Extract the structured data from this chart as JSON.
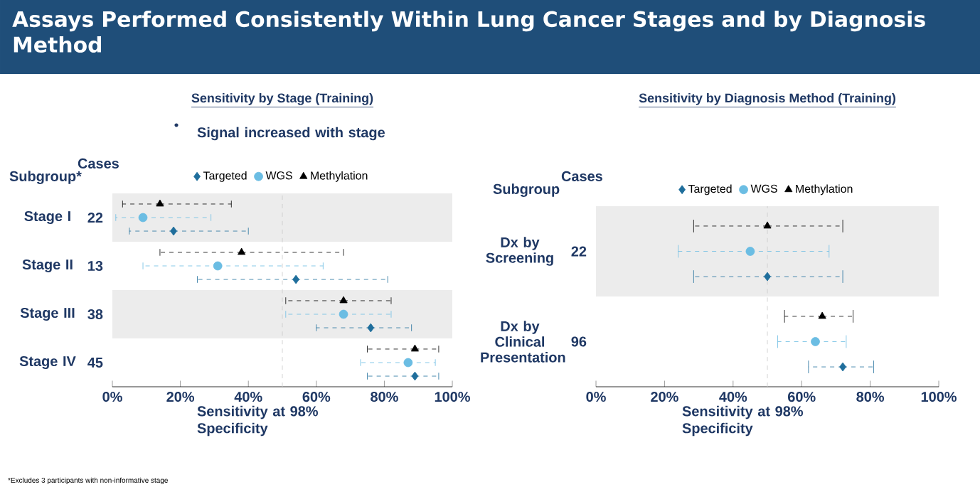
{
  "chart_data": [
    {
      "type": "scatter",
      "orientation": "horizontal",
      "title": "Assays Performed Consistently Within Lung Cancer Stages and by Diagnosis Method",
      "subtitle": "Sensitivity by Stage (Training)",
      "xlabel": "Sensitivity at 98% Specificity",
      "legend": "top",
      "categories": [
        "Stage I",
        "Stage II",
        "Stage III",
        "Stage IV"
      ],
      "xlim": [
        0,
        100
      ],
      "xticks": [
        {
          "value": 0,
          "label": "0%"
        },
        {
          "value": 20,
          "label": "20%"
        },
        {
          "value": 40,
          "label": "40%"
        },
        {
          "value": 60,
          "label": "60%"
        },
        {
          "value": 80,
          "label": "80%"
        },
        {
          "value": 100,
          "label": "100%"
        }
      ],
      "series": [
        {
          "name": "Targeted",
          "color": "#1f6e9c",
          "marker": "diamond",
          "values": [
            18,
            54,
            76,
            89
          ],
          "errors": [
            [
              5,
              40
            ],
            [
              25,
              81
            ],
            [
              60,
              88
            ],
            [
              75,
              96
            ]
          ]
        },
        {
          "name": "WGS",
          "color": "#6bbde3",
          "marker": "circle",
          "values": [
            9,
            31,
            68,
            87
          ],
          "errors": [
            [
              1,
              29
            ],
            [
              9,
              62
            ],
            [
              51,
              82
            ],
            [
              73,
              95
            ]
          ]
        },
        {
          "name": "Methylation",
          "color": "#000000",
          "marker": "triangle",
          "values": [
            14,
            38,
            68,
            89
          ],
          "errors": [
            [
              3,
              35
            ],
            [
              14,
              68
            ],
            [
              51,
              82
            ],
            [
              75,
              96
            ]
          ]
        }
      ],
      "ref_lines": [
        {
          "axis": "x",
          "value": 50,
          "color": "#c8c8c8",
          "line_style": "dashed"
        }
      ],
      "bands": [
        {
          "axis": "y",
          "from": "Stage I",
          "to": "Stage I",
          "color": "#ececec"
        },
        {
          "axis": "y",
          "from": "Stage III",
          "to": "Stage III",
          "color": "#ececec"
        }
      ],
      "annotations": [
        "Subgroup*",
        "Cases",
        "22",
        "13",
        "38",
        "45",
        "Signal increased with stage",
        "*Excludes 3 participants with non-informative stage"
      ]
    },
    {
      "type": "scatter",
      "orientation": "horizontal",
      "title": "Sensitivity by Diagnosis  Method (Training)",
      "xlabel": "Sensitivity at 98% Specificity",
      "legend": "top",
      "categories": [
        "Dx by Screening",
        "Dx by Clinical Presentation"
      ],
      "xlim": [
        0,
        100
      ],
      "xticks": [
        {
          "value": 0,
          "label": "0%"
        },
        {
          "value": 20,
          "label": "20%"
        },
        {
          "value": 40,
          "label": "40%"
        },
        {
          "value": 60,
          "label": "60%"
        },
        {
          "value": 80,
          "label": "80%"
        },
        {
          "value": 100,
          "label": "100%"
        }
      ],
      "series": [
        {
          "name": "Targeted",
          "color": "#1f6e9c",
          "marker": "diamond",
          "values": [
            50,
            72
          ],
          "errors": [
            [
              28.5,
              72
            ],
            [
              62,
              81
            ]
          ]
        },
        {
          "name": "WGS",
          "color": "#6bbde3",
          "marker": "circle",
          "values": [
            45,
            64
          ],
          "errors": [
            [
              24,
              68
            ],
            [
              53,
              73
            ]
          ]
        },
        {
          "name": "Methylation",
          "color": "#000000",
          "marker": "triangle",
          "values": [
            50,
            66
          ],
          "errors": [
            [
              28.5,
              72
            ],
            [
              55,
              75
            ]
          ]
        }
      ],
      "ref_lines": [
        {
          "axis": "x",
          "value": 50,
          "color": "#c8c8c8",
          "line_style": "dashed"
        }
      ],
      "bands": [
        {
          "axis": "y",
          "from": "Dx by Screening",
          "to": "Dx by Screening",
          "color": "#ececec"
        }
      ],
      "annotations": [
        "Subgroup",
        "Cases",
        "22",
        "96"
      ]
    }
  ]
}
